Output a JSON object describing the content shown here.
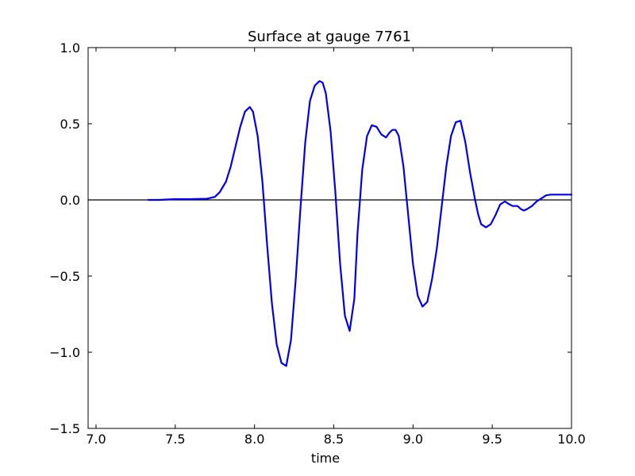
{
  "chart_data": {
    "type": "line",
    "title": "Surface at gauge 7761",
    "xlabel": "time",
    "ylabel": "",
    "xlim": [
      6.95,
      10.0
    ],
    "ylim": [
      -1.5,
      1.0
    ],
    "xticks": [
      7.0,
      7.5,
      8.0,
      8.5,
      9.0,
      9.5,
      10.0
    ],
    "xtick_labels": [
      "7.0",
      "7.5",
      "8.0",
      "8.5",
      "9.0",
      "9.5",
      "10.0"
    ],
    "yticks": [
      -1.5,
      -1.0,
      -0.5,
      0.0,
      0.5,
      1.0
    ],
    "ytick_labels": [
      "−1.5",
      "−1.0",
      "−0.5",
      "0.0",
      "0.5",
      "1.0"
    ],
    "grid": false,
    "reference_line": {
      "y": 0.0,
      "color": "#000000"
    },
    "series": [
      {
        "color": "#0000ee",
        "x": [
          7.33,
          7.4,
          7.5,
          7.6,
          7.7,
          7.75,
          7.78,
          7.82,
          7.85,
          7.88,
          7.91,
          7.94,
          7.97,
          7.99,
          8.02,
          8.05,
          8.08,
          8.11,
          8.14,
          8.17,
          8.2,
          8.23,
          8.26,
          8.29,
          8.32,
          8.35,
          8.38,
          8.41,
          8.43,
          8.45,
          8.48,
          8.51,
          8.54,
          8.57,
          8.6,
          8.63,
          8.65,
          8.68,
          8.71,
          8.74,
          8.77,
          8.8,
          8.83,
          8.85,
          8.87,
          8.89,
          8.91,
          8.94,
          8.97,
          9.0,
          9.03,
          9.06,
          9.09,
          9.12,
          9.15,
          9.18,
          9.21,
          9.24,
          9.27,
          9.3,
          9.33,
          9.36,
          9.39,
          9.41,
          9.43,
          9.46,
          9.49,
          9.52,
          9.55,
          9.58,
          9.61,
          9.63,
          9.66,
          9.68,
          9.7,
          9.72,
          9.75,
          9.78,
          9.81,
          9.84,
          9.87,
          9.9,
          9.93,
          9.96,
          10.0
        ],
        "y": [
          0.0,
          0.0,
          0.005,
          0.005,
          0.008,
          0.02,
          0.05,
          0.12,
          0.22,
          0.35,
          0.48,
          0.58,
          0.61,
          0.58,
          0.42,
          0.12,
          -0.3,
          -0.68,
          -0.95,
          -1.07,
          -1.09,
          -0.92,
          -0.52,
          -0.05,
          0.38,
          0.65,
          0.75,
          0.78,
          0.77,
          0.7,
          0.45,
          0.05,
          -0.42,
          -0.76,
          -0.86,
          -0.65,
          -0.22,
          0.2,
          0.42,
          0.49,
          0.48,
          0.43,
          0.41,
          0.44,
          0.46,
          0.46,
          0.42,
          0.22,
          -0.1,
          -0.42,
          -0.63,
          -0.7,
          -0.67,
          -0.52,
          -0.32,
          -0.05,
          0.22,
          0.42,
          0.51,
          0.52,
          0.38,
          0.18,
          0.01,
          -0.09,
          -0.16,
          -0.18,
          -0.16,
          -0.1,
          -0.03,
          -0.01,
          -0.03,
          -0.04,
          -0.04,
          -0.06,
          -0.07,
          -0.06,
          -0.04,
          -0.01,
          0.01,
          0.03,
          0.035,
          0.035,
          0.035,
          0.035,
          0.035
        ]
      }
    ]
  }
}
